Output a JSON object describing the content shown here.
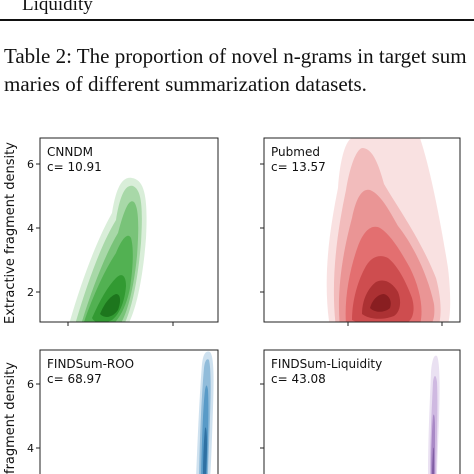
{
  "table_tail": {
    "row_label": "Liquidity"
  },
  "caption": {
    "line1": "Table 2: The proportion of novel n-grams in target sum",
    "line2": "maries of different summarization datasets."
  },
  "figure": {
    "ylabel_top": "Extractive fragment density",
    "ylabel_bottom": "fragment density",
    "panels": [
      {
        "name": "CNNDM",
        "stat": "c= 10.91",
        "color": "#2ca02c",
        "yticks": [
          "2",
          "4",
          "6"
        ]
      },
      {
        "name": "Pubmed",
        "stat": "c= 13.57",
        "color": "#d62728",
        "yticks": []
      },
      {
        "name": "FINDSum-ROO",
        "stat": "c= 68.97",
        "color": "#1f77b4",
        "yticks": [
          "4",
          "6"
        ]
      },
      {
        "name": "FINDSum-Liquidity",
        "stat": "c= 43.08",
        "color": "#9467bd",
        "yticks": []
      }
    ]
  }
}
